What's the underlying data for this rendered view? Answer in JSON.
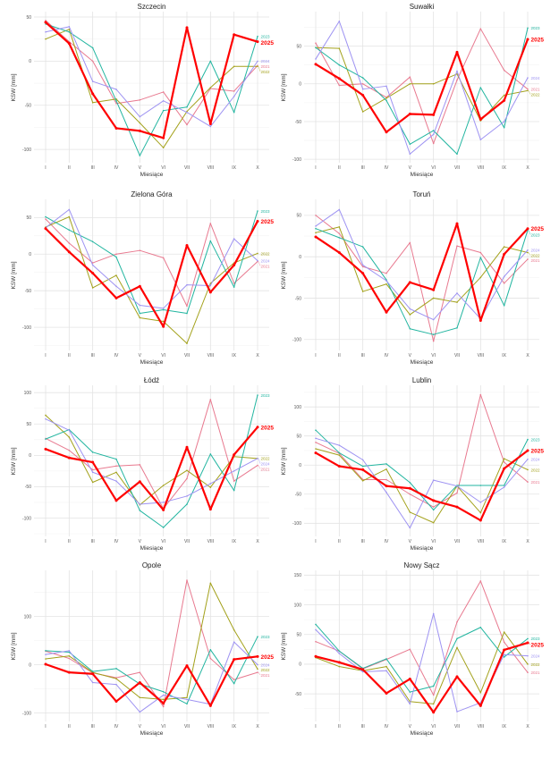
{
  "chart_data": [
    {
      "type": "line",
      "title": "Szczecin",
      "xlabel": "Miesiące",
      "ylabel": "KSW [mm]",
      "categories": [
        "I",
        "II",
        "III",
        "IV",
        "V",
        "VI",
        "VII",
        "VIII",
        "IX",
        "X"
      ],
      "ylim": [
        -112,
        52
      ],
      "yticks": [
        -100,
        -50,
        0,
        50
      ],
      "grid": true,
      "series": [
        {
          "name": "2021",
          "color": "#E8798F",
          "values": [
            46,
            22,
            0,
            -48,
            -44,
            -35,
            -72,
            -31,
            -34,
            -5
          ]
        },
        {
          "name": "2022",
          "color": "#A3A11B",
          "values": [
            25,
            36,
            -47,
            -43,
            -70,
            -98,
            -57,
            -30,
            -6,
            -6
          ]
        },
        {
          "name": "2023",
          "color": "#22B5A0",
          "values": [
            42,
            33,
            15,
            -45,
            -107,
            -56,
            -52,
            0,
            -58,
            28
          ]
        },
        {
          "name": "2024",
          "color": "#9E93F2",
          "values": [
            33,
            39,
            -23,
            -32,
            -63,
            -45,
            -58,
            -74,
            -40,
            0
          ]
        },
        {
          "name": "2025",
          "color": "#FF0000",
          "values": [
            44,
            20,
            -37,
            -76,
            -79,
            -87,
            38,
            -71,
            30,
            22
          ]
        }
      ]
    },
    {
      "type": "line",
      "title": "Suwałki",
      "xlabel": "Miesiące",
      "ylabel": "KSW [mm]",
      "categories": [
        "I",
        "II",
        "III",
        "IV",
        "V",
        "VI",
        "VII",
        "VIII",
        "IX",
        "X"
      ],
      "ylim": [
        -101,
        91
      ],
      "yticks": [
        -100,
        -50,
        0,
        50
      ],
      "grid": true,
      "series": [
        {
          "name": "2021",
          "color": "#E8798F",
          "values": [
            54,
            -2,
            0,
            -18,
            9,
            -79,
            5,
            73,
            18,
            -7
          ]
        },
        {
          "name": "2022",
          "color": "#A3A11B",
          "values": [
            48,
            47,
            -37,
            -19,
            0,
            0,
            13,
            -49,
            -15,
            -9
          ]
        },
        {
          "name": "2023",
          "color": "#22B5A0",
          "values": [
            48,
            25,
            8,
            -22,
            -80,
            -62,
            -93,
            -5,
            -58,
            74
          ]
        },
        {
          "name": "2024",
          "color": "#9E93F2",
          "values": [
            33,
            83,
            -7,
            -3,
            -93,
            -67,
            17,
            -74,
            -50,
            8
          ]
        },
        {
          "name": "2025",
          "color": "#FF0000",
          "values": [
            26,
            7,
            -15,
            -64,
            -40,
            -41,
            42,
            -47,
            -22,
            59
          ]
        }
      ]
    },
    {
      "type": "line",
      "title": "Zielona Góra",
      "xlabel": "Miesiące",
      "ylabel": "KSW [mm]",
      "categories": [
        "I",
        "II",
        "III",
        "IV",
        "V",
        "VI",
        "VII",
        "VIII",
        "IX",
        "X"
      ],
      "ylim": [
        -128,
        70
      ],
      "yticks": [
        -100,
        -50,
        0,
        50
      ],
      "grid": true,
      "series": [
        {
          "name": "2021",
          "color": "#E8798F",
          "values": [
            48,
            15,
            -12,
            0,
            5,
            -5,
            -71,
            42,
            -40,
            -10
          ]
        },
        {
          "name": "2022",
          "color": "#A3A11B",
          "values": [
            37,
            51,
            -46,
            -29,
            -87,
            -92,
            -122,
            -40,
            -12,
            1
          ]
        },
        {
          "name": "2023",
          "color": "#22B5A0",
          "values": [
            51,
            33,
            17,
            -4,
            -81,
            -76,
            -81,
            18,
            -45,
            59
          ]
        },
        {
          "name": "2024",
          "color": "#9E93F2",
          "values": [
            36,
            61,
            -15,
            -44,
            -70,
            -74,
            -42,
            -43,
            21,
            -9
          ]
        },
        {
          "name": "2025",
          "color": "#FF0000",
          "values": [
            35,
            3,
            -26,
            -60,
            -44,
            -99,
            12,
            -52,
            -15,
            45
          ]
        }
      ]
    },
    {
      "type": "line",
      "title": "Toruń",
      "xlabel": "Miesiące",
      "ylabel": "KSW [mm]",
      "categories": [
        "I",
        "II",
        "III",
        "IV",
        "V",
        "VI",
        "VII",
        "VIII",
        "IX",
        "X"
      ],
      "ylim": [
        -110,
        65
      ],
      "yticks": [
        -100,
        -50,
        0,
        50
      ],
      "grid": true,
      "series": [
        {
          "name": "2021",
          "color": "#E8798F",
          "values": [
            50,
            28,
            -12,
            -20,
            17,
            -102,
            13,
            5,
            -32,
            -3
          ]
        },
        {
          "name": "2022",
          "color": "#A3A11B",
          "values": [
            29,
            36,
            -42,
            -33,
            -70,
            -50,
            -55,
            -25,
            12,
            5
          ]
        },
        {
          "name": "2023",
          "color": "#22B5A0",
          "values": [
            34,
            23,
            12,
            -28,
            -87,
            -94,
            -86,
            -1,
            -59,
            32
          ]
        },
        {
          "name": "2024",
          "color": "#9E93F2",
          "values": [
            37,
            57,
            -10,
            -29,
            -63,
            -76,
            -44,
            -75,
            -24,
            8
          ]
        },
        {
          "name": "2025",
          "color": "#FF0000",
          "values": [
            24,
            5,
            -20,
            -67,
            -31,
            -40,
            40,
            -77,
            3,
            34
          ]
        }
      ]
    },
    {
      "type": "line",
      "title": "Łódź",
      "xlabel": "Miesiące",
      "ylabel": "KSW [mm]",
      "categories": [
        "I",
        "II",
        "III",
        "IV",
        "V",
        "VI",
        "VII",
        "VIII",
        "IX",
        "X"
      ],
      "ylim": [
        -125,
        106
      ],
      "yticks": [
        -100,
        -50,
        0,
        50,
        100
      ],
      "grid": true,
      "series": [
        {
          "name": "2021",
          "color": "#E8798F",
          "values": [
            27,
            8,
            -23,
            -17,
            -15,
            -85,
            -37,
            89,
            -41,
            -16
          ]
        },
        {
          "name": "2022",
          "color": "#A3A11B",
          "values": [
            64,
            29,
            -43,
            -27,
            -79,
            -48,
            -24,
            -51,
            -2,
            -5
          ]
        },
        {
          "name": "2023",
          "color": "#22B5A0",
          "values": [
            26,
            41,
            5,
            -6,
            -88,
            -115,
            -78,
            2,
            -56,
            96
          ]
        },
        {
          "name": "2024",
          "color": "#9E93F2",
          "values": [
            58,
            40,
            -27,
            -41,
            -78,
            -75,
            -65,
            -45,
            -25,
            -5
          ]
        },
        {
          "name": "2025",
          "color": "#FF0000",
          "values": [
            10,
            -4,
            -11,
            -72,
            -42,
            -87,
            13,
            -86,
            1,
            45
          ]
        }
      ]
    },
    {
      "type": "line",
      "title": "Lublin",
      "xlabel": "Miesiące",
      "ylabel": "KSW [mm]",
      "categories": [
        "I",
        "II",
        "III",
        "IV",
        "V",
        "VI",
        "VII",
        "VIII",
        "IX",
        "X"
      ],
      "ylim": [
        -118,
        131
      ],
      "yticks": [
        -100,
        -50,
        0,
        50,
        100
      ],
      "grid": true,
      "series": [
        {
          "name": "2021",
          "color": "#E8798F",
          "values": [
            39,
            20,
            -25,
            -25,
            -50,
            -72,
            -48,
            121,
            5,
            -29
          ]
        },
        {
          "name": "2022",
          "color": "#A3A11B",
          "values": [
            28,
            17,
            -27,
            -7,
            -81,
            -99,
            -36,
            -82,
            11,
            -8
          ]
        },
        {
          "name": "2023",
          "color": "#22B5A0",
          "values": [
            60,
            21,
            -2,
            2,
            -30,
            -77,
            -35,
            -35,
            -35,
            44
          ]
        },
        {
          "name": "2024",
          "color": "#9E93F2",
          "values": [
            46,
            34,
            9,
            -47,
            -108,
            -26,
            -36,
            -64,
            -38,
            10
          ]
        },
        {
          "name": "2025",
          "color": "#FF0000",
          "values": [
            21,
            -2,
            -8,
            -36,
            -40,
            -61,
            -72,
            -95,
            -6,
            25
          ]
        }
      ]
    },
    {
      "type": "line",
      "title": "Opole",
      "xlabel": "Miesiące",
      "ylabel": "KSW [mm]",
      "categories": [
        "I",
        "II",
        "III",
        "IV",
        "V",
        "VI",
        "VII",
        "VIII",
        "IX",
        "X"
      ],
      "ylim": [
        -112,
        188
      ],
      "yticks": [
        -100,
        0,
        100
      ],
      "grid": true,
      "series": [
        {
          "name": "2021",
          "color": "#E8798F",
          "values": [
            28,
            13,
            -17,
            -27,
            -16,
            -87,
            175,
            13,
            -31,
            -16
          ]
        },
        {
          "name": "2022",
          "color": "#A3A11B",
          "values": [
            12,
            18,
            -16,
            -29,
            -68,
            -72,
            -68,
            169,
            72,
            -9
          ]
        },
        {
          "name": "2023",
          "color": "#22B5A0",
          "values": [
            29,
            26,
            -14,
            -8,
            -40,
            -56,
            -81,
            31,
            -39,
            58
          ]
        },
        {
          "name": "2024",
          "color": "#9E93F2",
          "values": [
            21,
            29,
            -37,
            -41,
            -98,
            -63,
            -72,
            -82,
            47,
            0
          ]
        },
        {
          "name": "2025",
          "color": "#FF0000",
          "values": [
            1,
            -16,
            -19,
            -76,
            -37,
            -80,
            -2,
            -85,
            11,
            17
          ]
        }
      ]
    },
    {
      "type": "line",
      "title": "Nowy Sącz",
      "xlabel": "Miesiące",
      "ylabel": "KSW [mm]",
      "categories": [
        "I",
        "II",
        "III",
        "IV",
        "V",
        "VI",
        "VII",
        "VIII",
        "IX",
        "X"
      ],
      "ylim": [
        -92,
        152
      ],
      "yticks": [
        -50,
        0,
        50,
        100,
        150
      ],
      "grid": true,
      "series": [
        {
          "name": "2021",
          "color": "#E8798F",
          "values": [
            38,
            22,
            -8,
            8,
            25,
            -52,
            71,
            140,
            37,
            -14
          ]
        },
        {
          "name": "2022",
          "color": "#A3A11B",
          "values": [
            11,
            -4,
            -11,
            -4,
            -63,
            -67,
            28,
            -48,
            54,
            0
          ]
        },
        {
          "name": "2023",
          "color": "#22B5A0",
          "values": [
            67,
            22,
            -7,
            9,
            -47,
            -37,
            43,
            62,
            12,
            43
          ]
        },
        {
          "name": "2024",
          "color": "#9E93F2",
          "values": [
            58,
            18,
            -13,
            -11,
            -67,
            85,
            -80,
            -65,
            16,
            14
          ]
        },
        {
          "name": "2025",
          "color": "#FF0000",
          "values": [
            13,
            3,
            -9,
            -49,
            -25,
            -81,
            -21,
            -70,
            24,
            36
          ]
        }
      ]
    }
  ]
}
